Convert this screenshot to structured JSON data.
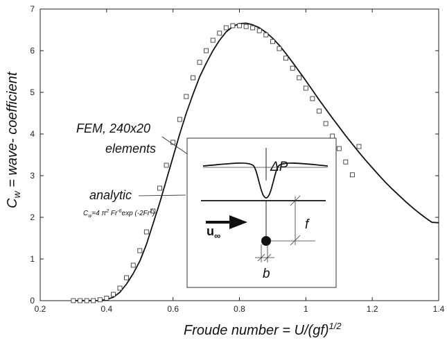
{
  "chart_data": {
    "type": "line",
    "title": "",
    "xlabel": {
      "main": "Froude number = U/(gf)",
      "sup": "1/2"
    },
    "ylabel": {
      "c": "C",
      "sub": "w",
      "rest": " = wave- coefficient"
    },
    "xlim": [
      0.2,
      1.4
    ],
    "ylim": [
      0,
      7
    ],
    "xticks": [
      0.2,
      0.4,
      0.6,
      0.8,
      1.0,
      1.2,
      1.4
    ],
    "xtick_labels": [
      "0.2",
      "0.4",
      "0.6",
      "0.8",
      "1",
      "1.2",
      "1.4"
    ],
    "yticks": [
      0,
      1,
      2,
      3,
      4,
      5,
      6,
      7
    ],
    "ytick_labels": [
      "0",
      "1",
      "2",
      "3",
      "4",
      "5",
      "6",
      "7"
    ],
    "grid": false,
    "series": [
      {
        "kind": "line",
        "x": [
          0.3,
          0.32,
          0.34,
          0.36,
          0.38,
          0.4,
          0.42,
          0.44,
          0.46,
          0.48,
          0.5,
          0.52,
          0.54,
          0.56,
          0.58,
          0.6,
          0.62,
          0.64,
          0.66,
          0.68,
          0.7,
          0.72,
          0.74,
          0.76,
          0.78,
          0.8,
          0.82,
          0.84,
          0.86,
          0.88,
          0.9,
          0.92,
          0.94,
          0.96,
          0.98,
          1.0,
          1.02,
          1.04,
          1.06,
          1.08,
          1.1,
          1.12,
          1.14,
          1.16,
          1.18,
          1.2,
          1.22,
          1.24,
          1.26,
          1.28,
          1.3,
          1.32,
          1.34,
          1.36,
          1.38,
          1.4
        ],
        "y": [
          0.0,
          0.0,
          0.0,
          0.0,
          0.0,
          0.03,
          0.08,
          0.2,
          0.4,
          0.65,
          0.95,
          1.35,
          1.85,
          2.35,
          2.9,
          3.45,
          4.0,
          4.5,
          4.95,
          5.37,
          5.7,
          6.0,
          6.25,
          6.45,
          6.58,
          6.65,
          6.66,
          6.62,
          6.55,
          6.44,
          6.3,
          6.13,
          5.93,
          5.72,
          5.5,
          5.28,
          5.05,
          4.82,
          4.6,
          4.38,
          4.17,
          3.96,
          3.76,
          3.56,
          3.37,
          3.19,
          3.01,
          2.84,
          2.68,
          2.53,
          2.38,
          2.24,
          2.11,
          1.99,
          1.88,
          1.87
        ]
      },
      {
        "kind": "markers",
        "x": [
          0.3,
          0.32,
          0.34,
          0.36,
          0.38,
          0.4,
          0.42,
          0.44,
          0.46,
          0.48,
          0.5,
          0.52,
          0.54,
          0.56,
          0.58,
          0.6,
          0.62,
          0.64,
          0.66,
          0.68,
          0.7,
          0.72,
          0.74,
          0.76,
          0.78,
          0.8,
          0.82,
          0.84,
          0.86,
          0.88,
          0.9,
          0.92,
          0.94,
          0.96,
          0.98,
          1.0,
          1.02,
          1.04,
          1.06,
          1.08,
          1.1,
          1.12,
          1.14,
          1.16
        ],
        "y": [
          0.0,
          0.0,
          0.0,
          0.0,
          0.02,
          0.06,
          0.15,
          0.3,
          0.55,
          0.85,
          1.2,
          1.65,
          2.15,
          2.7,
          3.25,
          3.8,
          4.35,
          4.9,
          5.35,
          5.72,
          6.0,
          6.25,
          6.42,
          6.55,
          6.6,
          6.6,
          6.58,
          6.55,
          6.48,
          6.38,
          6.22,
          6.05,
          5.82,
          5.58,
          5.35,
          5.1,
          4.85,
          4.55,
          4.25,
          3.95,
          3.65,
          3.33,
          3.02,
          3.7
        ]
      }
    ],
    "annotations": {
      "fem_line1": "FEM, 240x20",
      "fem_line2": "elements",
      "analytic": "analytic",
      "formula": {
        "p1": "C",
        "p2": "w",
        "p3": "=4 π",
        "p4": "2",
        "p5": " Fr",
        "p6": "-6",
        "p7": "exp (-2Fr",
        "p8": "2",
        "p9": ")"
      }
    },
    "inset": {
      "delta_p": "ΔP",
      "f": "f",
      "b": "b",
      "u": "u",
      "u_sub": "∞"
    }
  }
}
